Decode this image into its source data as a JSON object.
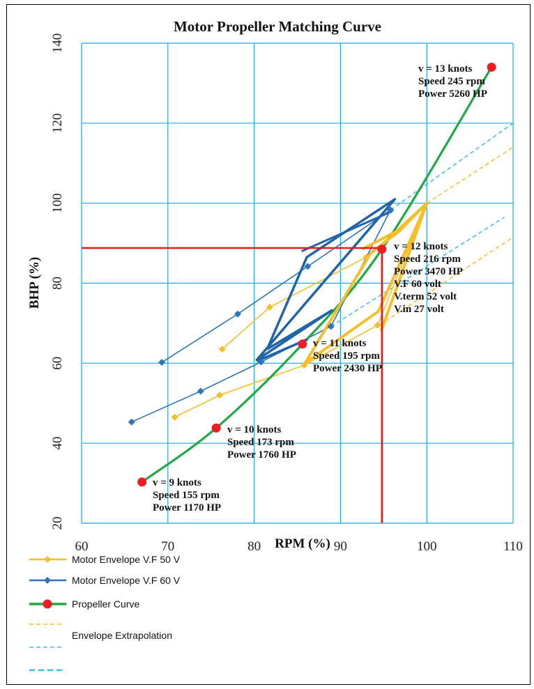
{
  "chart_data": {
    "type": "line",
    "title": "Motor Propeller Matching Curve",
    "xlabel": "RPM (%)",
    "ylabel": "BHP (%)",
    "xlim": [
      60,
      110
    ],
    "ylim": [
      20,
      140
    ],
    "xticks": [
      "60",
      "70",
      "80",
      "90",
      "100",
      "110"
    ],
    "yticks": [
      "20",
      "40",
      "60",
      "80",
      "100",
      "120",
      "140"
    ],
    "grid": true,
    "legend_position": "bottom-left",
    "colors": {
      "vf50": "#f6be28",
      "vf60": "#2e75b6",
      "vf60_thick": "#1f64aa",
      "propeller": "#1fa846",
      "propeller_point": "#ee1c25",
      "extrap_yellow": "#f6be28",
      "extrap_blue": "#3dbbea",
      "operating_line": "#e01b1b",
      "grid": "#1ca7e0"
    },
    "series": [
      {
        "name": "Motor Envelope V.F 50 V",
        "style": "thin-solid-diamond",
        "segments": [
          {
            "x": [
              70.8,
              76.0,
              85.8,
              94.3,
              100.0
            ],
            "y": [
              46.5,
              52.0,
              59.5,
              69.5,
              100.0
            ]
          },
          {
            "x": [
              76.3,
              81.8,
              93.0,
              100.0
            ],
            "y": [
              63.5,
              74.0,
              86.5,
              100.0
            ]
          }
        ]
      },
      {
        "name": "Motor Envelope V.F 60 V",
        "style": "thin-solid-diamond",
        "segments": [
          {
            "x": [
              65.8,
              73.8,
              80.8,
              88.9,
              95.8
            ],
            "y": [
              45.3,
              53.0,
              60.3,
              69.2,
              98.3
            ]
          },
          {
            "x": [
              69.3,
              78.1,
              86.2,
              95.8
            ],
            "y": [
              60.2,
              72.3,
              84.2,
              98.3
            ]
          }
        ]
      },
      {
        "name": "Propeller Curve",
        "style": "thick-solid",
        "x": [
          67.0,
          75.6,
          85.6,
          94.8,
          107.5
        ],
        "y": [
          30.3,
          43.8,
          64.8,
          88.5,
          134.0
        ]
      },
      {
        "name": "Envelope Extrapolation",
        "style": "dashed",
        "segments": [
          {
            "color": "extrap_yellow",
            "x": [
              100.0,
              110.0
            ],
            "y": [
              100.0,
              114.0
            ]
          },
          {
            "color": "extrap_yellow",
            "x": [
              94.5,
              110.0
            ],
            "y": [
              69.5,
              91.5
            ]
          },
          {
            "color": "extrap_blue",
            "x": [
              95.8,
              110.0
            ],
            "y": [
              98.3,
              120.0
            ]
          },
          {
            "color": "extrap_blue",
            "x": [
              88.9,
              109.0
            ],
            "y": [
              69.2,
              96.5
            ]
          }
        ]
      }
    ],
    "overlays": {
      "thick_yellow_outline": {
        "x": [
          85.9,
          93.5,
          96.8,
          100.0,
          94.4,
          85.9
        ],
        "y": [
          60.0,
          87.5,
          93.0,
          100.0,
          73.0,
          60.0
        ]
      },
      "thick_yellow_inner": {
        "x": [
          92.5,
          96.5,
          100.0,
          94.7
        ],
        "y": [
          88.5,
          93.0,
          100.0,
          68.0
        ]
      },
      "thick_blue_outline": {
        "x": [
          81.5,
          86.1,
          96.3,
          80.3,
          89.0,
          81.5
        ],
        "y": [
          63.5,
          86.5,
          101.0,
          60.8,
          73.2,
          63.5
        ]
      },
      "thick_blue_upper": {
        "x": [
          85.5,
          96.0
        ],
        "y": [
          88.0,
          98.0
        ]
      },
      "thick_blue_lower": {
        "x": [
          80.3,
          86.2
        ],
        "y": [
          60.5,
          66.0
        ]
      }
    },
    "operating_point": {
      "rpm": 94.8,
      "bhp": 88.8
    },
    "annotations": [
      {
        "lines": [
          "v = 9 knots",
          "Speed 155 rpm",
          "Power 1170 HP"
        ]
      },
      {
        "lines": [
          "v = 10 knots",
          "Speed 173 rpm",
          "Power 1760 HP"
        ]
      },
      {
        "lines": [
          "v = 11 knots",
          "Speed 195 rpm",
          "Power 2430 HP"
        ]
      },
      {
        "lines": [
          "v = 12 knots",
          "Speed 216 rpm",
          "Power 3470 HP",
          "V.F 60 volt",
          "V.term 52 volt",
          "V.in 27 volt"
        ]
      },
      {
        "lines": [
          "v = 13 knots",
          "Speed 245 rpm",
          "Power 5260 HP"
        ]
      }
    ],
    "legend": [
      {
        "label": "Motor Envelope V.F 50 V",
        "kind": "diamond",
        "color": "vf50"
      },
      {
        "label": "Motor Envelope V.F 60 V",
        "kind": "diamond",
        "color": "vf60"
      },
      {
        "label": "Propeller Curve",
        "kind": "dot",
        "color": "propeller"
      },
      {
        "label": "Envelope Extrapolation",
        "kind": "dash-pair",
        "color": "extrap_yellow"
      }
    ]
  }
}
